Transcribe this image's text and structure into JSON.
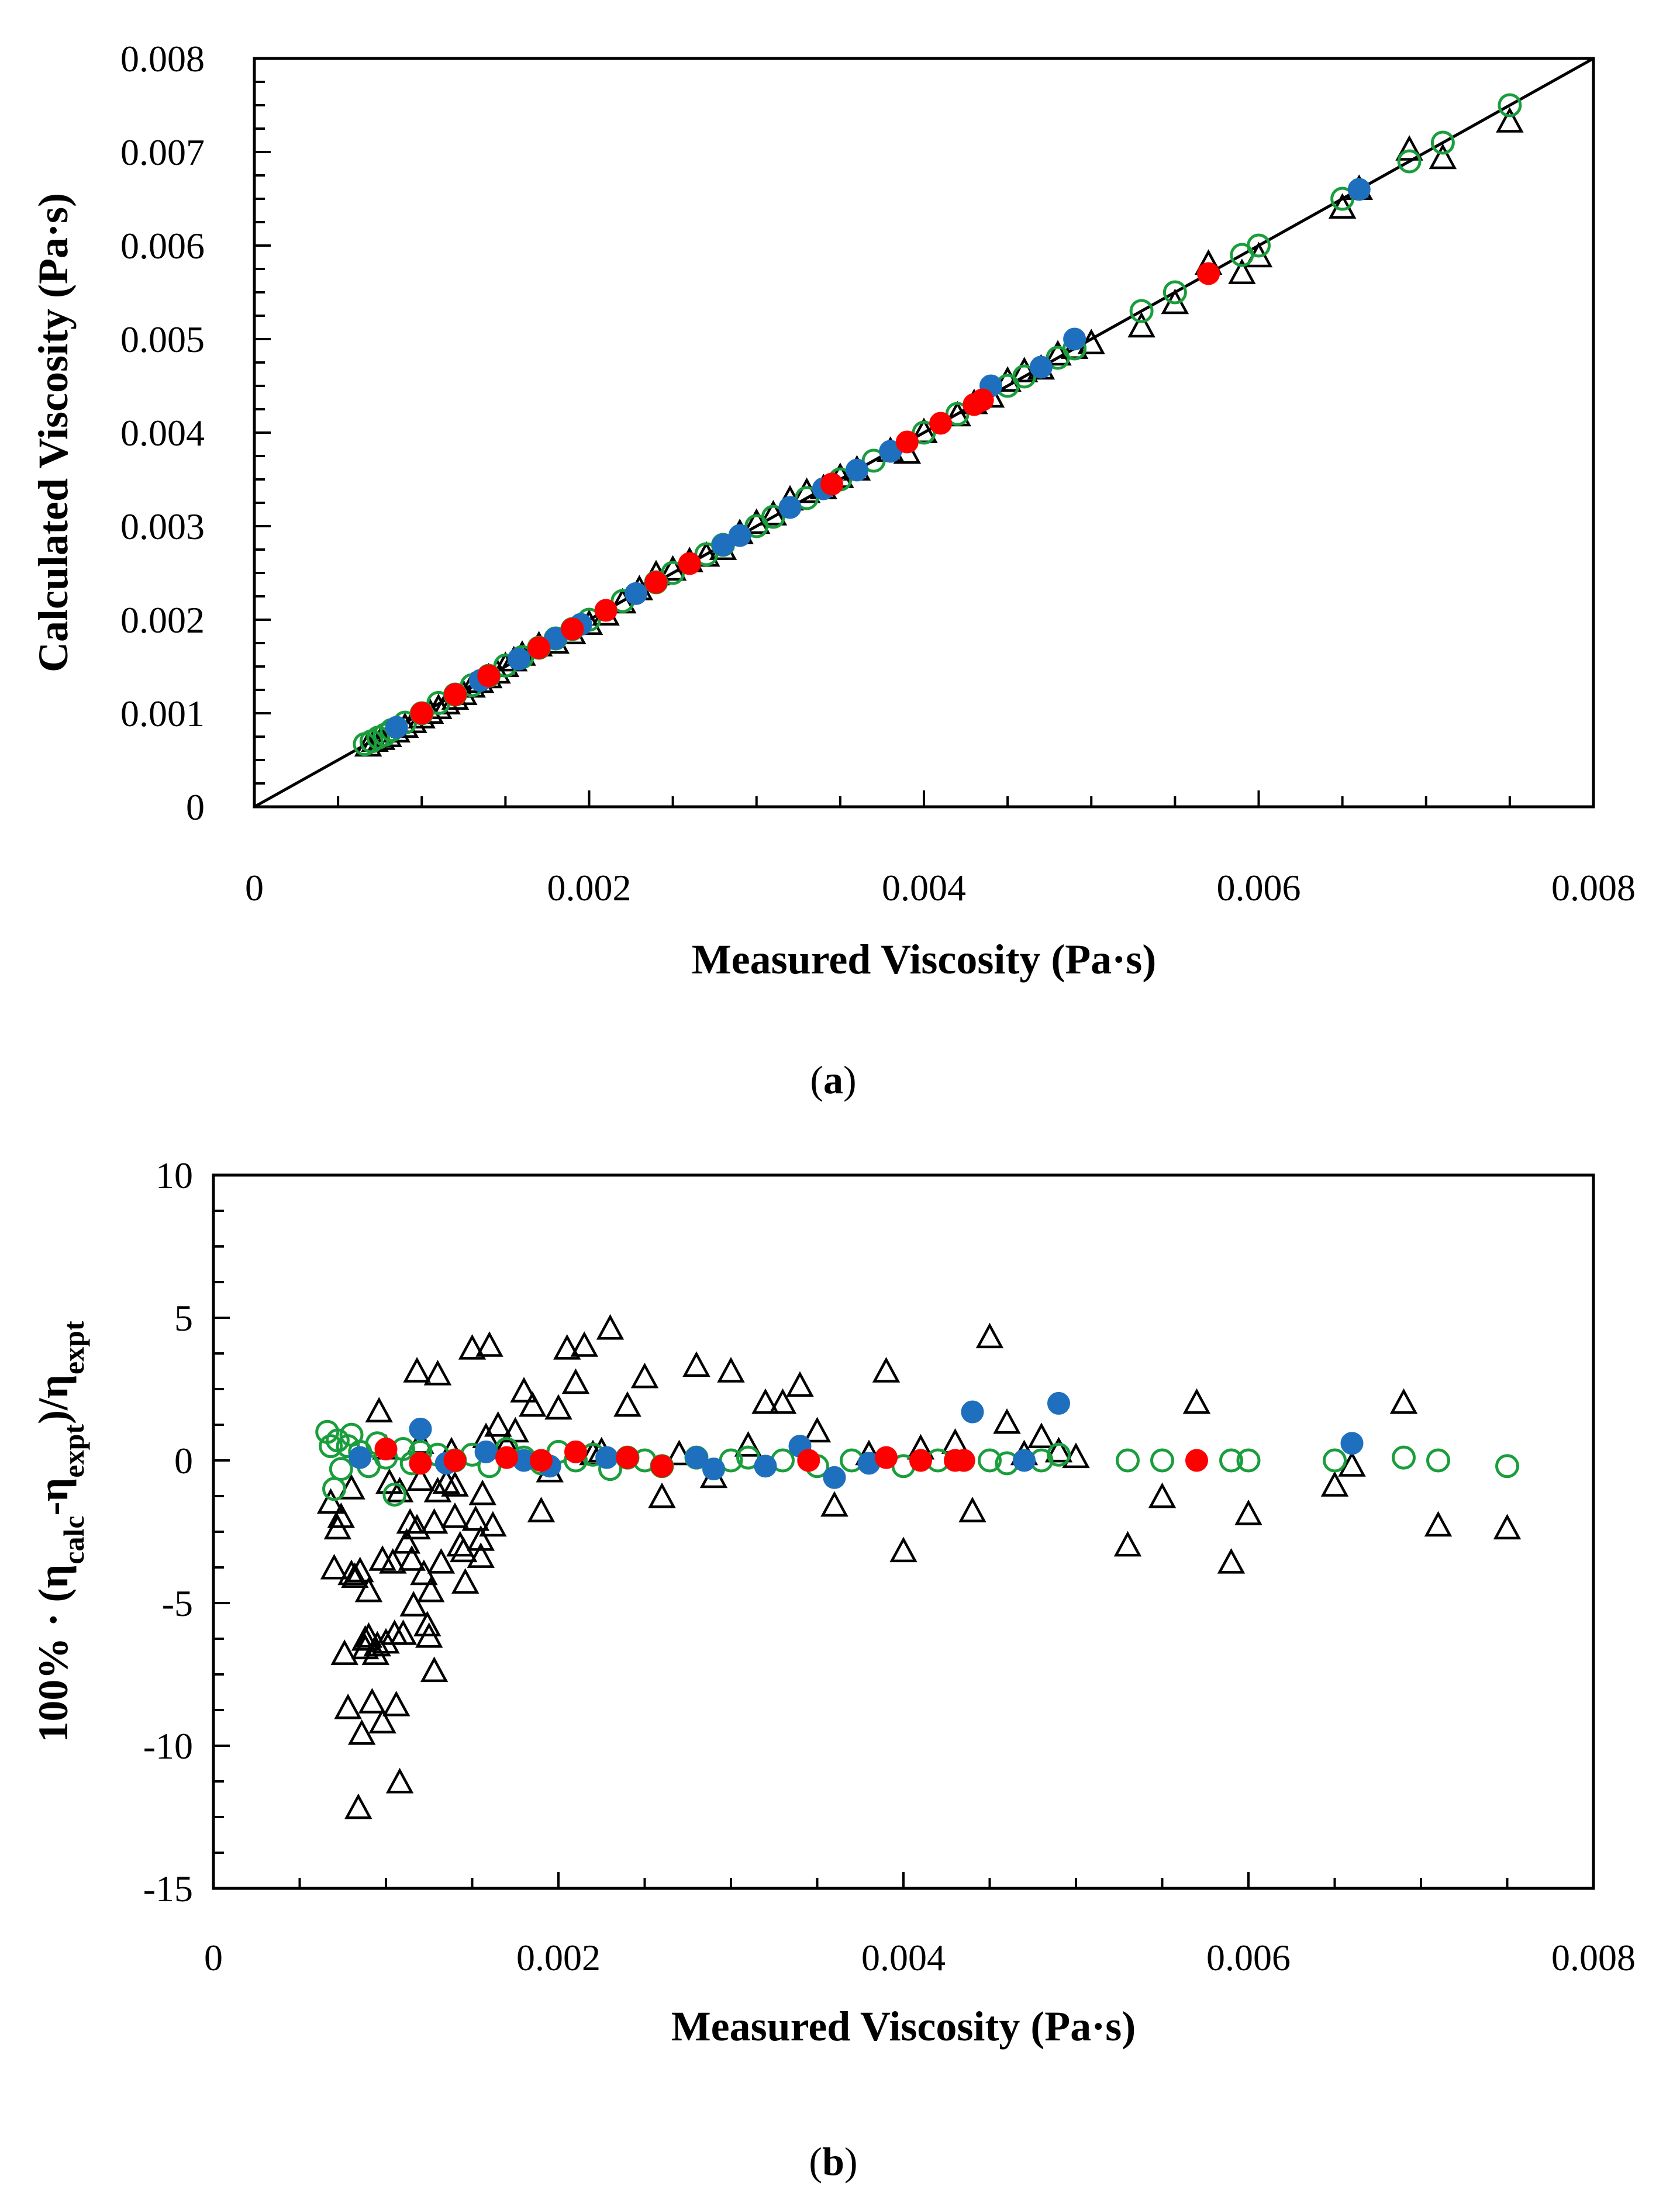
{
  "colors": {
    "triangle": "#000000",
    "circle_open": "#1a9e3c",
    "dot_blue": "#1f6fbf",
    "dot_red": "#ff0000"
  },
  "chart_data": [
    {
      "panel": "(a)",
      "panel_letter": "a",
      "type": "scatter",
      "xlabel": "Measured Viscosity (Pa·s)",
      "ylabel": "Calculated Viscosity (Pa·s)",
      "xlim": [
        0,
        0.008
      ],
      "ylim": [
        0,
        0.008
      ],
      "xticks": [
        "0",
        "0.002",
        "0.004",
        "0.006",
        "0.008"
      ],
      "yticks": [
        "0",
        "0.001",
        "0.002",
        "0.003",
        "0.004",
        "0.005",
        "0.006",
        "0.007",
        "0.008"
      ],
      "diagonal": [
        [
          0,
          0
        ],
        [
          0.008,
          0.008
        ]
      ],
      "series": [
        {
          "name": "triangles",
          "marker": "open-triangle",
          "x": [
            0.00068,
            0.00072,
            0.00076,
            0.0008,
            0.00085,
            0.0009,
            0.00095,
            0.001,
            0.00105,
            0.0011,
            0.00115,
            0.0012,
            0.00125,
            0.0013,
            0.00135,
            0.0014,
            0.00145,
            0.0015,
            0.00155,
            0.0016,
            0.0017,
            0.0018,
            0.0019,
            0.002,
            0.0021,
            0.0022,
            0.0023,
            0.0024,
            0.0025,
            0.0026,
            0.0027,
            0.0028,
            0.0029,
            0.003,
            0.0031,
            0.0032,
            0.0033,
            0.0034,
            0.0035,
            0.0036,
            0.0038,
            0.0039,
            0.004,
            0.0042,
            0.0043,
            0.0044,
            0.0045,
            0.0046,
            0.0047,
            0.0048,
            0.0049,
            0.005,
            0.0053,
            0.0055,
            0.0057,
            0.0059,
            0.006,
            0.0065,
            0.0066,
            0.0069,
            0.0071,
            0.0075
          ],
          "y": [
            0.00065,
            0.0007,
            0.00072,
            0.00075,
            0.0008,
            0.00085,
            0.0009,
            0.00095,
            0.001,
            0.00105,
            0.0011,
            0.00115,
            0.0012,
            0.00128,
            0.00133,
            0.00138,
            0.00143,
            0.0015,
            0.00156,
            0.00162,
            0.00172,
            0.00175,
            0.00185,
            0.00195,
            0.00205,
            0.00218,
            0.00232,
            0.00248,
            0.00253,
            0.00262,
            0.00268,
            0.00275,
            0.00292,
            0.00303,
            0.00312,
            0.00328,
            0.00336,
            0.0034,
            0.00352,
            0.0036,
            0.0038,
            0.00378,
            0.004,
            0.00418,
            0.00431,
            0.00438,
            0.00455,
            0.00465,
            0.00468,
            0.00483,
            0.0049,
            0.00495,
            0.00513,
            0.00538,
            0.0058,
            0.0057,
            0.00588,
            0.0064,
            0.0066,
            0.00702,
            0.00693,
            0.00732
          ]
        },
        {
          "name": "open circles",
          "marker": "open-circle",
          "x": [
            0.00066,
            0.0007,
            0.00074,
            0.00078,
            0.00082,
            0.0009,
            0.001,
            0.0011,
            0.0012,
            0.0013,
            0.0014,
            0.0015,
            0.0016,
            0.0017,
            0.0018,
            0.0019,
            0.002,
            0.0022,
            0.0024,
            0.0025,
            0.0027,
            0.0028,
            0.003,
            0.0031,
            0.0033,
            0.0035,
            0.0037,
            0.004,
            0.0042,
            0.0045,
            0.0046,
            0.0048,
            0.0049,
            0.0053,
            0.0055,
            0.0059,
            0.006,
            0.0065,
            0.0069,
            0.0071,
            0.0075
          ],
          "y": [
            0.00067,
            0.0007,
            0.00074,
            0.00077,
            0.00082,
            0.0009,
            0.001,
            0.00111,
            0.0012,
            0.0013,
            0.0014,
            0.00151,
            0.0016,
            0.0017,
            0.0018,
            0.0019,
            0.002,
            0.0022,
            0.0024,
            0.0025,
            0.0027,
            0.0028,
            0.003,
            0.0031,
            0.0033,
            0.0035,
            0.0037,
            0.004,
            0.0042,
            0.0045,
            0.0046,
            0.0048,
            0.0049,
            0.0053,
            0.0055,
            0.0059,
            0.006,
            0.0065,
            0.0069,
            0.0071,
            0.0075
          ]
        },
        {
          "name": "blue dots",
          "marker": "filled-circle",
          "x": [
            0.00085,
            0.0012,
            0.00135,
            0.00158,
            0.0018,
            0.00195,
            0.00228,
            0.0028,
            0.0029,
            0.0032,
            0.0034,
            0.0036,
            0.0038,
            0.0044,
            0.0047,
            0.0049,
            0.0066
          ],
          "y": [
            0.00085,
            0.0012,
            0.00135,
            0.00158,
            0.0018,
            0.00195,
            0.00228,
            0.0028,
            0.0029,
            0.0032,
            0.0034,
            0.0036,
            0.0038,
            0.0045,
            0.0047,
            0.005,
            0.0066
          ]
        },
        {
          "name": "red dots",
          "marker": "filled-circle",
          "x": [
            0.001,
            0.0012,
            0.0014,
            0.0017,
            0.0019,
            0.0021,
            0.0024,
            0.0026,
            0.00345,
            0.0039,
            0.0041,
            0.0043,
            0.00435,
            0.0057
          ],
          "y": [
            0.001,
            0.0012,
            0.0014,
            0.0017,
            0.0019,
            0.0021,
            0.0024,
            0.0026,
            0.00345,
            0.0039,
            0.0041,
            0.0043,
            0.00435,
            0.0057
          ]
        }
      ]
    },
    {
      "panel": "(b)",
      "panel_letter": "b",
      "type": "scatter",
      "xlabel": "Measured Viscosity (Pa·s)",
      "ylabel_prefix": "100% · (η",
      "ylabel_sub1": "calc",
      "ylabel_mid": "-η",
      "ylabel_sub2": "expt",
      "ylabel_after": ")/η",
      "ylabel_sub3": "expt",
      "xlim": [
        0,
        0.008
      ],
      "ylim": [
        -15,
        10
      ],
      "xticks": [
        "0",
        "0.002",
        "0.004",
        "0.006",
        "0.008"
      ],
      "yticks": [
        "-15",
        "-10",
        "-5",
        "0",
        "5",
        "10"
      ],
      "series": [
        {
          "name": "triangles",
          "marker": "open-triangle",
          "x": [
            0.00068,
            0.0007,
            0.00072,
            0.00074,
            0.00076,
            0.00078,
            0.0008,
            0.00082,
            0.00084,
            0.00086,
            0.00088,
            0.0009,
            0.00092,
            0.00094,
            0.00096,
            0.00098,
            0.001,
            0.001,
            0.00102,
            0.00104,
            0.00106,
            0.00108,
            0.0011,
            0.00112,
            0.00114,
            0.00116,
            0.00118,
            0.0012,
            0.0012,
            0.00122,
            0.00124,
            0.00126,
            0.00128,
            0.0013,
            0.0013,
            0.00132,
            0.00135,
            0.00138,
            0.0014,
            0.00143,
            0.00146,
            0.0015,
            0.00152,
            0.00155,
            0.00158,
            0.0016,
            0.00162,
            0.00165,
            0.0017,
            0.00175,
            0.0018,
            0.00185,
            0.0019,
            0.00195,
            0.002,
            0.00205,
            0.0021,
            0.00215,
            0.0022,
            0.00225,
            0.0023,
            0.0024,
            0.0025,
            0.0026,
            0.0027,
            0.0028,
            0.0029,
            0.003,
            0.0031,
            0.0032,
            0.0033,
            0.0034,
            0.0035,
            0.0036,
            0.0038,
            0.0039,
            0.004,
            0.0041,
            0.0043,
            0.0044,
            0.0045,
            0.0046,
            0.0047,
            0.0048,
            0.0049,
            0.005,
            0.0053,
            0.0055,
            0.0057,
            0.0059,
            0.006,
            0.0065,
            0.0066,
            0.0069,
            0.0071,
            0.0075,
            0.00085,
            0.0009,
            0.00095,
            0.00105,
            0.00115,
            0.00125,
            0.00145,
            0.00155,
            0.0008,
            0.00088,
            0.00098,
            0.00108,
            0.00118,
            0.00128,
            0.0014,
            0.00156
          ],
          "y": [
            -1.5,
            -3.8,
            -2.4,
            -2.0,
            -6.8,
            -8.7,
            -1.0,
            -4.1,
            -12.2,
            -9.6,
            -6.3,
            -4.6,
            -8.5,
            -6.8,
            1.7,
            -9.2,
            -6.4,
            0.4,
            -0.8,
            -3.6,
            -8.6,
            -11.3,
            -6.1,
            -2.9,
            -2.2,
            -5.1,
            3.1,
            0.6,
            -0.7,
            -4.0,
            -5.8,
            -4.6,
            -7.4,
            3.0,
            -1.1,
            -3.6,
            -0.8,
            0.3,
            -2.0,
            -3.0,
            -4.3,
            3.9,
            -2.1,
            -3.4,
            0.8,
            4.0,
            -2.3,
            1.2,
            0.5,
            1.0,
            2.4,
            1.9,
            -1.8,
            -0.4,
            1.8,
            3.9,
            2.7,
            4.0,
            0.2,
            0.3,
            4.6,
            1.9,
            2.9,
            -1.3,
            0.2,
            3.3,
            -0.6,
            3.1,
            0.5,
            2.0,
            2.0,
            2.6,
            1.0,
            -1.6,
            0.2,
            3.1,
            -3.2,
            0.4,
            0.6,
            -1.8,
            4.3,
            1.3,
            0.2,
            0.8,
            0.3,
            0.1,
            -3.0,
            -1.3,
            2.0,
            -3.6,
            -1.9,
            -0.9,
            -0.2,
            2.0,
            -2.3,
            -2.4,
            -3.9,
            -6.2,
            -6.5,
            -6.1,
            -3.5,
            -6.2,
            -3.2,
            -2.8,
            -4.0,
            -6.6,
            -3.5,
            -1.1,
            -2.4,
            -2.2,
            -0.9,
            -1.2
          ]
        },
        {
          "name": "open circles",
          "marker": "open-circle",
          "x": [
            0.00066,
            0.00068,
            0.0007,
            0.00072,
            0.00074,
            0.00078,
            0.0008,
            0.00085,
            0.0009,
            0.00095,
            0.001,
            0.00105,
            0.0011,
            0.00115,
            0.0012,
            0.0013,
            0.0014,
            0.0015,
            0.0016,
            0.0017,
            0.0018,
            0.0019,
            0.002,
            0.0021,
            0.0022,
            0.0023,
            0.0024,
            0.0025,
            0.0026,
            0.0028,
            0.003,
            0.0031,
            0.0033,
            0.0035,
            0.0037,
            0.004,
            0.0042,
            0.0045,
            0.0046,
            0.0048,
            0.0049,
            0.0053,
            0.0055,
            0.0059,
            0.006,
            0.0065,
            0.0069,
            0.0071,
            0.0075
          ],
          "y": [
            1.0,
            0.5,
            -1.0,
            0.7,
            -0.3,
            0.5,
            0.9,
            0.3,
            -0.2,
            0.6,
            0.1,
            -1.2,
            0.4,
            -0.1,
            0.3,
            0.2,
            0.0,
            0.2,
            -0.2,
            0.4,
            0.1,
            -0.1,
            0.3,
            0.0,
            0.2,
            -0.3,
            0.1,
            0.0,
            -0.2,
            0.1,
            0.0,
            0.1,
            0.0,
            -0.2,
            0.0,
            -0.2,
            0.0,
            0.0,
            -0.1,
            0.0,
            0.2,
            0.0,
            0.0,
            0.0,
            0.0,
            0.0,
            0.1,
            0.0,
            -0.2
          ]
        },
        {
          "name": "blue dots",
          "marker": "filled-circle",
          "x": [
            0.00085,
            0.0012,
            0.00135,
            0.00158,
            0.0018,
            0.00195,
            0.00228,
            0.0028,
            0.0029,
            0.0032,
            0.0034,
            0.0036,
            0.0038,
            0.0044,
            0.0047,
            0.0049,
            0.0066
          ],
          "y": [
            0.1,
            1.1,
            -0.1,
            0.3,
            0.0,
            -0.2,
            0.1,
            0.1,
            -0.3,
            -0.2,
            0.5,
            -0.6,
            -0.1,
            1.7,
            0.0,
            2.0,
            0.6
          ]
        },
        {
          "name": "red dots",
          "marker": "filled-circle",
          "x": [
            0.001,
            0.0012,
            0.0014,
            0.0017,
            0.0019,
            0.0021,
            0.0024,
            0.0026,
            0.00345,
            0.0039,
            0.0041,
            0.0043,
            0.00435,
            0.0057
          ],
          "y": [
            0.4,
            -0.1,
            0.0,
            0.1,
            0.0,
            0.3,
            0.1,
            -0.2,
            0.0,
            0.1,
            0.0,
            0.0,
            0.0,
            0.0
          ]
        }
      ]
    }
  ]
}
